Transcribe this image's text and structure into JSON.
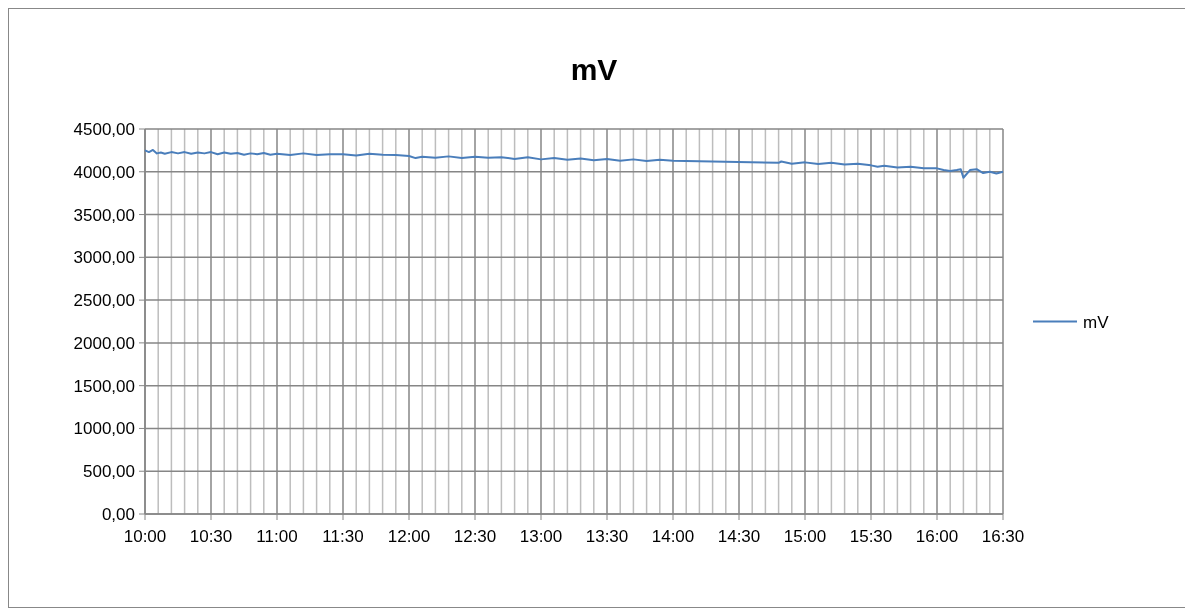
{
  "chart_data": {
    "type": "line",
    "title": "mV",
    "legend": "right",
    "grid": true,
    "marker": "none",
    "line_style": "solid",
    "xlim": [
      10,
      16.5
    ],
    "xticks": [
      {
        "value": 10,
        "label": "10:00"
      },
      {
        "value": 10.1,
        "label": null
      },
      {
        "value": 10.2,
        "label": null
      },
      {
        "value": 10.3,
        "label": null
      },
      {
        "value": 10.4,
        "label": null
      },
      {
        "value": 10.5,
        "label": "10:30"
      },
      {
        "value": 10.6,
        "label": null
      },
      {
        "value": 10.7,
        "label": null
      },
      {
        "value": 10.8,
        "label": null
      },
      {
        "value": 10.9,
        "label": null
      },
      {
        "value": 11,
        "label": "11:00"
      },
      {
        "value": 11.1,
        "label": null
      },
      {
        "value": 11.2,
        "label": null
      },
      {
        "value": 11.3,
        "label": null
      },
      {
        "value": 11.4,
        "label": null
      },
      {
        "value": 11.5,
        "label": "11:30"
      },
      {
        "value": 11.6,
        "label": null
      },
      {
        "value": 11.7,
        "label": null
      },
      {
        "value": 11.8,
        "label": null
      },
      {
        "value": 11.9,
        "label": null
      },
      {
        "value": 12,
        "label": "12:00"
      },
      {
        "value": 12.1,
        "label": null
      },
      {
        "value": 12.2,
        "label": null
      },
      {
        "value": 12.3,
        "label": null
      },
      {
        "value": 12.4,
        "label": null
      },
      {
        "value": 12.5,
        "label": "12:30"
      },
      {
        "value": 12.6,
        "label": null
      },
      {
        "value": 12.7,
        "label": null
      },
      {
        "value": 12.8,
        "label": null
      },
      {
        "value": 12.9,
        "label": null
      },
      {
        "value": 13,
        "label": "13:00"
      },
      {
        "value": 13.1,
        "label": null
      },
      {
        "value": 13.2,
        "label": null
      },
      {
        "value": 13.3,
        "label": null
      },
      {
        "value": 13.4,
        "label": null
      },
      {
        "value": 13.5,
        "label": "13:30"
      },
      {
        "value": 13.6,
        "label": null
      },
      {
        "value": 13.7,
        "label": null
      },
      {
        "value": 13.8,
        "label": null
      },
      {
        "value": 13.9,
        "label": null
      },
      {
        "value": 14,
        "label": "14:00"
      },
      {
        "value": 14.1,
        "label": null
      },
      {
        "value": 14.2,
        "label": null
      },
      {
        "value": 14.3,
        "label": null
      },
      {
        "value": 14.4,
        "label": null
      },
      {
        "value": 14.5,
        "label": "14:30"
      },
      {
        "value": 14.6,
        "label": null
      },
      {
        "value": 14.7,
        "label": null
      },
      {
        "value": 14.8,
        "label": null
      },
      {
        "value": 14.9,
        "label": null
      },
      {
        "value": 15,
        "label": "15:00"
      },
      {
        "value": 15.1,
        "label": null
      },
      {
        "value": 15.2,
        "label": null
      },
      {
        "value": 15.3,
        "label": null
      },
      {
        "value": 15.4,
        "label": null
      },
      {
        "value": 15.5,
        "label": "15:30"
      },
      {
        "value": 15.6,
        "label": null
      },
      {
        "value": 15.7,
        "label": null
      },
      {
        "value": 15.8,
        "label": null
      },
      {
        "value": 15.9,
        "label": null
      },
      {
        "value": 16,
        "label": "16:00"
      },
      {
        "value": 16.1,
        "label": null
      },
      {
        "value": 16.2,
        "label": null
      },
      {
        "value": 16.3,
        "label": null
      },
      {
        "value": 16.4,
        "label": null
      },
      {
        "value": 16.5,
        "label": "16:30"
      }
    ],
    "ylim": [
      0,
      4500
    ],
    "yticks": [
      {
        "value": 0,
        "label": "0,00"
      },
      {
        "value": 500,
        "label": "500,00"
      },
      {
        "value": 1000,
        "label": "1000,00"
      },
      {
        "value": 1500,
        "label": "1500,00"
      },
      {
        "value": 2000,
        "label": "2000,00"
      },
      {
        "value": 2500,
        "label": "2500,00"
      },
      {
        "value": 3000,
        "label": "3000,00"
      },
      {
        "value": 3500,
        "label": "3500,00"
      },
      {
        "value": 4000,
        "label": "4000,00"
      },
      {
        "value": 4500,
        "label": "4500,00"
      }
    ],
    "series": [
      {
        "name": "mV",
        "color": "#4a7ebb",
        "x": [
          10,
          10.03,
          10.06,
          10.09,
          10.12,
          10.15,
          10.2,
          10.25,
          10.3,
          10.35,
          10.4,
          10.45,
          10.5,
          10.55,
          10.6,
          10.65,
          10.7,
          10.75,
          10.8,
          10.85,
          10.9,
          10.95,
          11,
          11.1,
          11.2,
          11.3,
          11.4,
          11.5,
          11.6,
          11.7,
          11.8,
          11.9,
          12,
          12.05,
          12.1,
          12.2,
          12.3,
          12.4,
          12.5,
          12.6,
          12.7,
          12.8,
          12.9,
          13,
          13.1,
          13.2,
          13.3,
          13.4,
          13.5,
          13.6,
          13.7,
          13.8,
          13.9,
          14,
          14.8,
          14.82,
          14.9,
          15,
          15.1,
          15.2,
          15.3,
          15.4,
          15.5,
          15.55,
          15.6,
          15.7,
          15.8,
          15.9,
          16,
          16.05,
          16.1,
          16.15,
          16.18,
          16.2,
          16.25,
          16.3,
          16.35,
          16.4,
          16.45,
          16.5
        ],
        "values": [
          4250,
          4230,
          4255,
          4215,
          4225,
          4210,
          4230,
          4215,
          4230,
          4210,
          4225,
          4215,
          4230,
          4205,
          4225,
          4210,
          4220,
          4200,
          4215,
          4205,
          4220,
          4200,
          4210,
          4195,
          4215,
          4195,
          4205,
          4205,
          4190,
          4210,
          4200,
          4195,
          4185,
          4160,
          4175,
          4165,
          4180,
          4160,
          4175,
          4165,
          4170,
          4150,
          4170,
          4145,
          4160,
          4140,
          4155,
          4135,
          4150,
          4130,
          4145,
          4125,
          4140,
          4130,
          4105,
          4120,
          4095,
          4110,
          4090,
          4105,
          4085,
          4095,
          4075,
          4060,
          4070,
          4050,
          4060,
          4040,
          4040,
          4020,
          4010,
          4020,
          4030,
          3930,
          4020,
          4030,
          3985,
          4000,
          3980,
          4000
        ]
      }
    ]
  }
}
